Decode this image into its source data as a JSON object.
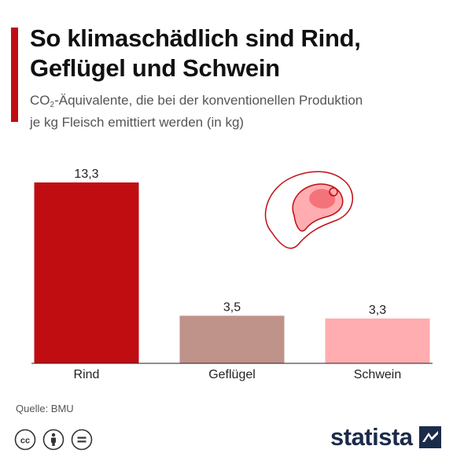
{
  "header": {
    "title_line1": "So klimaschädlich sind Rind,",
    "title_line2": "Geflügel und Schwein",
    "subtitle_line1_pre": "CO",
    "subtitle_line1_sub": "2",
    "subtitle_line1_post": "-Äquivalente, die bei der konventionellen Produktion",
    "subtitle_line2": "je kg Fleisch emittiert werden (in kg)",
    "accent_color": "#c00d12"
  },
  "chart_data": {
    "type": "bar",
    "categories": [
      "Rind",
      "Geflügel",
      "Schwein"
    ],
    "values": [
      13.3,
      3.5,
      3.3
    ],
    "value_labels": [
      "13,3",
      "3,5",
      "3,3"
    ],
    "colors": [
      "#c00d12",
      "#bf928a",
      "#ffadb0"
    ],
    "ylim": [
      0,
      13.3
    ],
    "grid": false,
    "legend": "none",
    "decoration": "meat-icon"
  },
  "footer": {
    "source": "Quelle: BMU",
    "license_icons": [
      "cc-icon",
      "by-icon",
      "nd-icon"
    ],
    "brand": "statista"
  }
}
